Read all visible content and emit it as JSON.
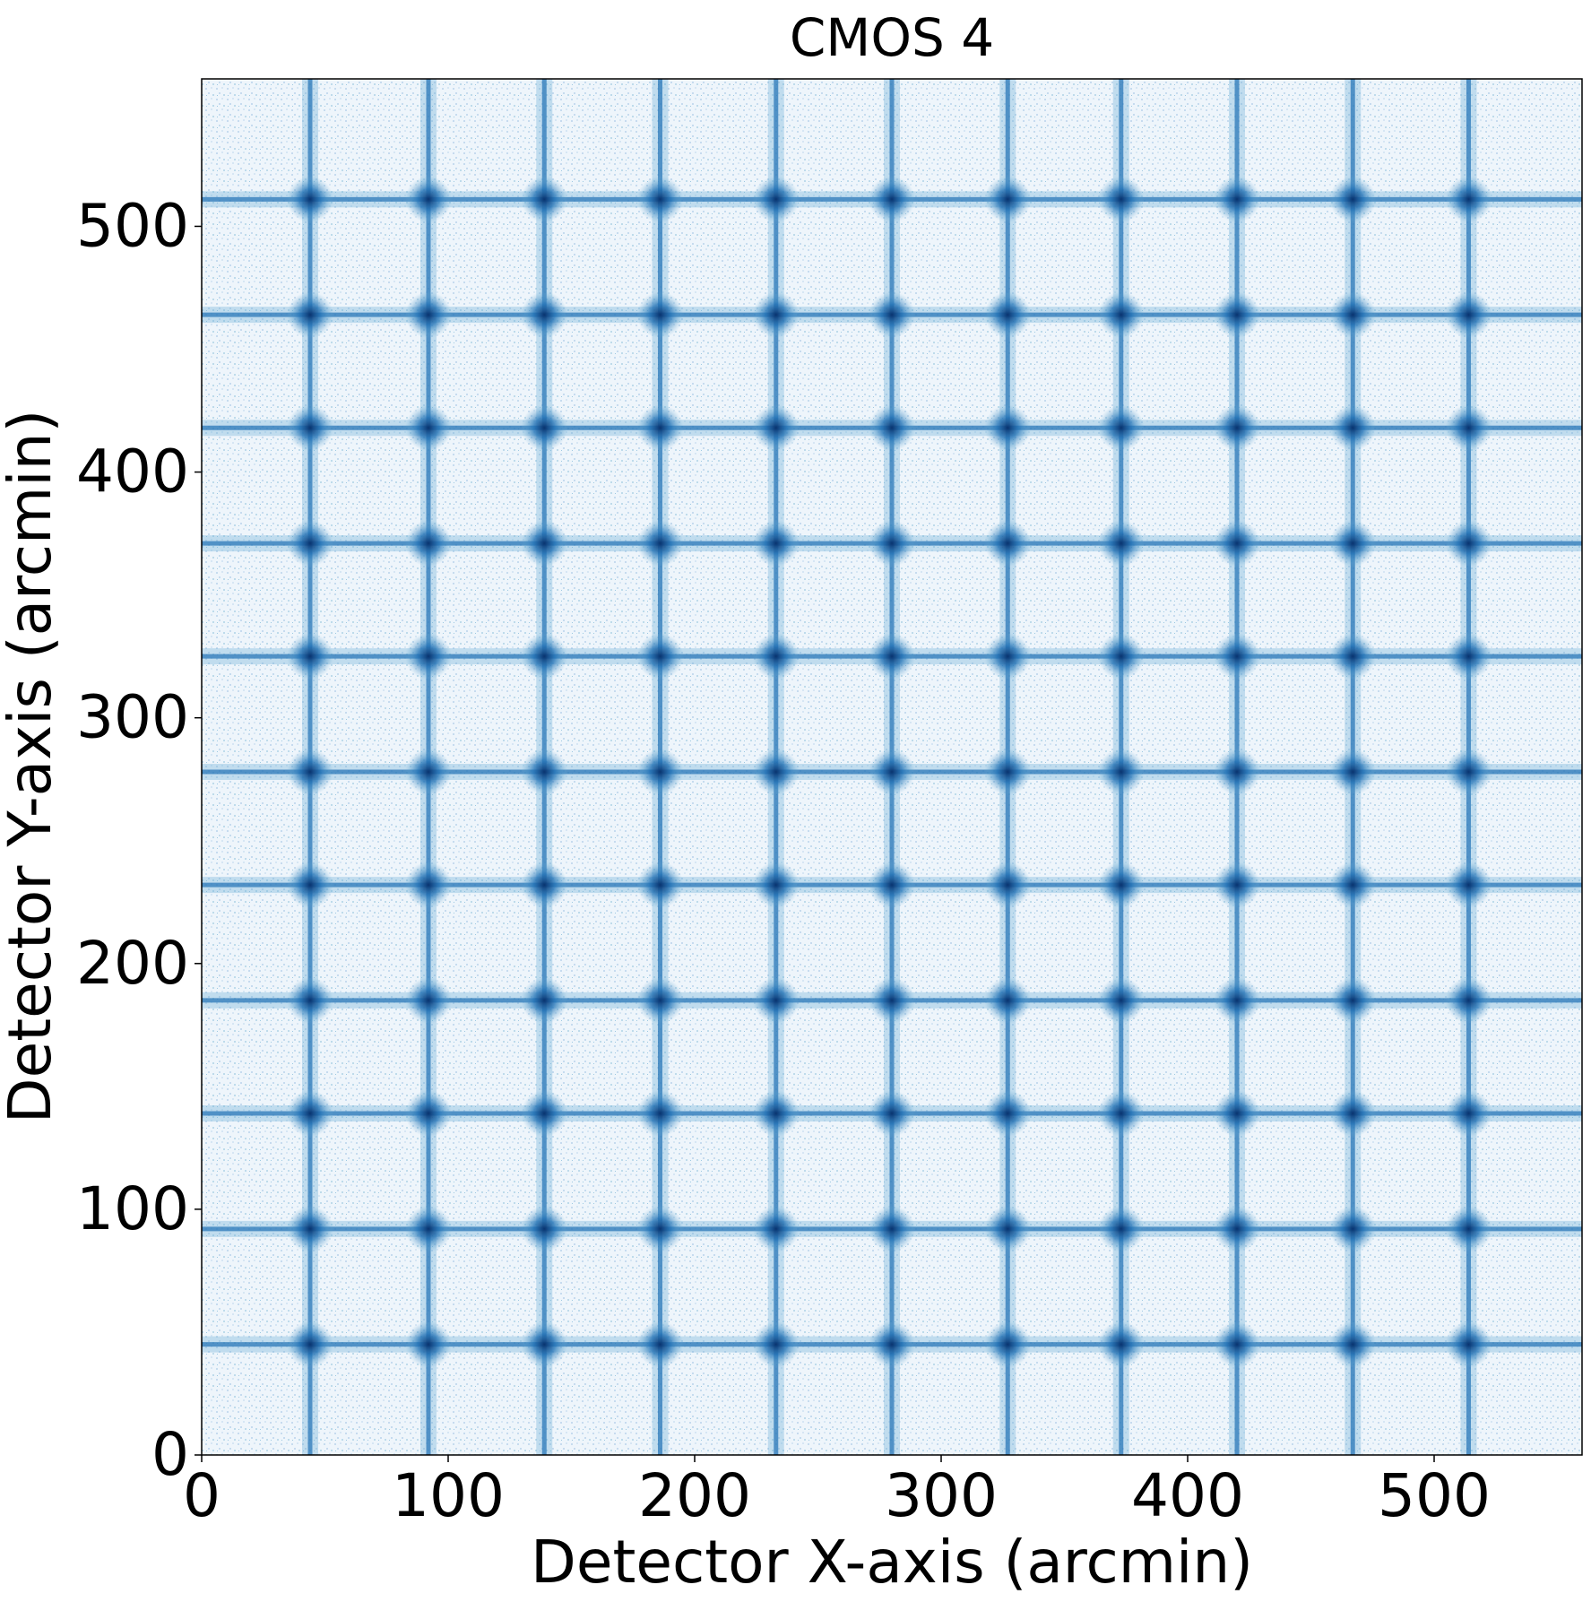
{
  "chart_data": {
    "type": "heatmap",
    "title": "CMOS 4",
    "xlabel": "Detector X-axis (arcmin)",
    "ylabel": "Detector Y-axis (arcmin)",
    "xlim": [
      0,
      560
    ],
    "ylim": [
      0,
      560
    ],
    "xticks": [
      0,
      100,
      200,
      300,
      400,
      500
    ],
    "yticks": [
      0,
      100,
      200,
      300,
      400,
      500
    ],
    "grid": false,
    "legend": "none",
    "colormap": "Blues",
    "background_color": "#ffffff",
    "colors": {
      "faint": "#c6dbef",
      "mid": "#6baed6",
      "dense": "#2171b5",
      "peak": "#08306b"
    },
    "grid_lines_x": [
      44,
      92,
      139,
      186,
      233,
      280,
      327,
      373,
      420,
      467,
      514
    ],
    "grid_lines_y": [
      45,
      92,
      139,
      185,
      232,
      278,
      325,
      371,
      418,
      464,
      511
    ],
    "description_values": "Bright lines at the listed detector coordinates (arcmin); intensity peaks at each line crossing."
  }
}
